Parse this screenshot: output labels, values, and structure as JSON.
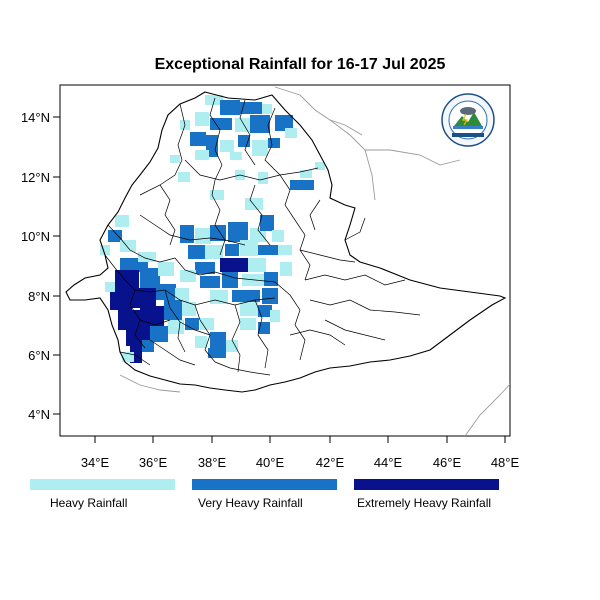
{
  "title": "Exceptional Rainfall for 16-17 Jul 2025",
  "axes": {
    "lon_ticks": [
      "34°E",
      "36°E",
      "38°E",
      "40°E",
      "42°E",
      "44°E",
      "46°E",
      "48°E"
    ],
    "lat_ticks": [
      "14°N",
      "12°N",
      "10°N",
      "8°N",
      "6°N",
      "4°N"
    ]
  },
  "legend": [
    {
      "label": "Heavy Rainfall",
      "color": "#aeeef0"
    },
    {
      "label": "Very Heavy Rainfall",
      "color": "#1872c6"
    },
    {
      "label": "Extremely Heavy Rainfall",
      "color": "#08128c"
    }
  ],
  "colors": {
    "heavy": "#aeeef0",
    "very_heavy": "#1872c6",
    "extreme": "#08128c",
    "border": "#000000",
    "neighbor_border": "#9a9a9a"
  },
  "logo": {
    "icon": "meteorology-agency-logo"
  }
}
